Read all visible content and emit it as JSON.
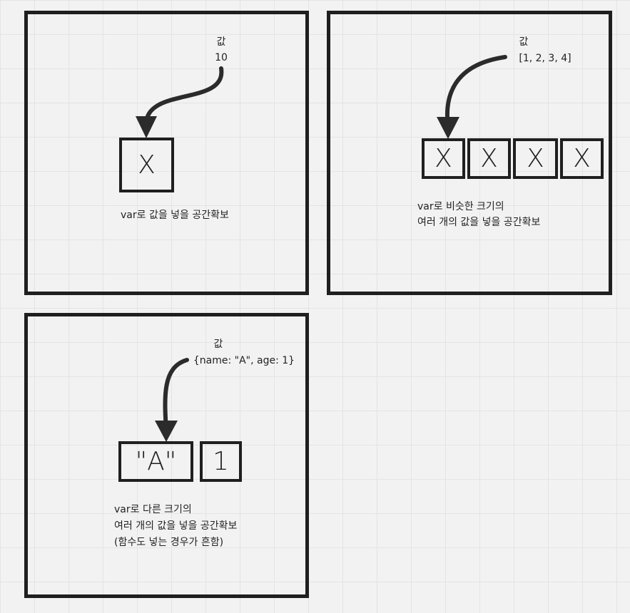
{
  "panel1": {
    "value_label": "값",
    "value": "10",
    "cell": "X",
    "caption": "var로 값을 넣을 공간확보"
  },
  "panel2": {
    "value_label": "값",
    "value": "[1, 2, 3, 4]",
    "cells": [
      "X",
      "X",
      "X",
      "X"
    ],
    "caption_lines": [
      "var로 비슷한 크기의",
      "여러 개의 값을 넣을 공간확보"
    ]
  },
  "panel3": {
    "value_label": "값",
    "value": "{name: \"A\", age: 1}",
    "cells": [
      "\"A\"",
      "1"
    ],
    "caption_lines": [
      "var로 다른 크기의",
      "여러 개의 값을 넣을 공간확보",
      "(함수도 넣는 경우가 흔함)"
    ]
  }
}
